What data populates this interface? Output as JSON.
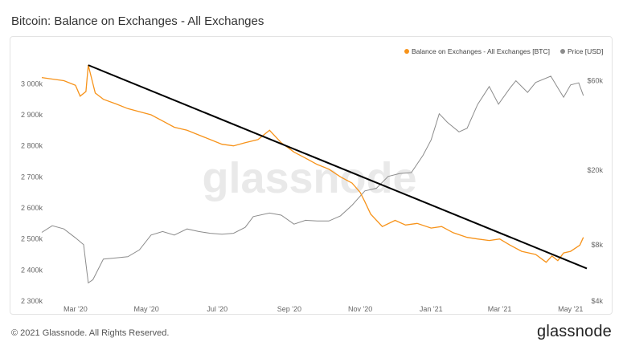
{
  "header": {
    "title": "Bitcoin: Balance on Exchanges - All Exchanges"
  },
  "footer": {
    "copyright": "© 2021 Glassnode. All Rights Reserved.",
    "logo": "glassnode"
  },
  "watermark": "glassnode",
  "colors": {
    "balance": "#f7931a",
    "price": "#8c8c8c",
    "trendline": "#000000"
  },
  "chart_data": {
    "type": "line",
    "title": "Bitcoin: Balance on Exchanges - All Exchanges",
    "x_ticks": [
      "Mar '20",
      "May '20",
      "Jul '20",
      "Sep '20",
      "Nov '20",
      "Jan '21",
      "Mar '21",
      "May '21"
    ],
    "y_left_ticks": [
      "2 300k",
      "2 400k",
      "2 500k",
      "2 600k",
      "2 700k",
      "2 800k",
      "2 900k",
      "3 000k"
    ],
    "y_left_range": [
      2300000,
      3050000
    ],
    "y_right_ticks": [
      "$4k",
      "$8k",
      "$20k",
      "$60k"
    ],
    "y_right_scale": "log",
    "y_right_range": [
      4000,
      70000
    ],
    "x_range": [
      "2020-02-01",
      "2021-05-15"
    ],
    "legend_position": "top-right",
    "series": [
      {
        "name": "Balance on Exchanges - All Exchanges [BTC]",
        "axis": "left",
        "points": [
          [
            "2020-02-01",
            3020000
          ],
          [
            "2020-02-10",
            3015000
          ],
          [
            "2020-02-20",
            3010000
          ],
          [
            "2020-03-01",
            2995000
          ],
          [
            "2020-03-05",
            2960000
          ],
          [
            "2020-03-10",
            2975000
          ],
          [
            "2020-03-12",
            3060000
          ],
          [
            "2020-03-18",
            2970000
          ],
          [
            "2020-03-25",
            2950000
          ],
          [
            "2020-04-05",
            2935000
          ],
          [
            "2020-04-15",
            2920000
          ],
          [
            "2020-04-25",
            2910000
          ],
          [
            "2020-05-05",
            2900000
          ],
          [
            "2020-05-15",
            2880000
          ],
          [
            "2020-05-25",
            2860000
          ],
          [
            "2020-06-05",
            2850000
          ],
          [
            "2020-06-15",
            2835000
          ],
          [
            "2020-06-25",
            2820000
          ],
          [
            "2020-07-05",
            2805000
          ],
          [
            "2020-07-15",
            2800000
          ],
          [
            "2020-07-25",
            2810000
          ],
          [
            "2020-08-05",
            2820000
          ],
          [
            "2020-08-15",
            2850000
          ],
          [
            "2020-08-25",
            2810000
          ],
          [
            "2020-09-05",
            2780000
          ],
          [
            "2020-09-15",
            2760000
          ],
          [
            "2020-09-25",
            2740000
          ],
          [
            "2020-10-05",
            2725000
          ],
          [
            "2020-10-15",
            2700000
          ],
          [
            "2020-10-25",
            2680000
          ],
          [
            "2020-11-01",
            2650000
          ],
          [
            "2020-11-05",
            2620000
          ],
          [
            "2020-11-10",
            2580000
          ],
          [
            "2020-11-20",
            2540000
          ],
          [
            "2020-12-01",
            2560000
          ],
          [
            "2020-12-10",
            2545000
          ],
          [
            "2020-12-20",
            2550000
          ],
          [
            "2021-01-01",
            2535000
          ],
          [
            "2021-01-10",
            2540000
          ],
          [
            "2021-01-20",
            2520000
          ],
          [
            "2021-02-01",
            2505000
          ],
          [
            "2021-02-10",
            2500000
          ],
          [
            "2021-02-20",
            2495000
          ],
          [
            "2021-03-01",
            2500000
          ],
          [
            "2021-03-10",
            2480000
          ],
          [
            "2021-03-20",
            2460000
          ],
          [
            "2021-04-01",
            2450000
          ],
          [
            "2021-04-10",
            2425000
          ],
          [
            "2021-04-15",
            2445000
          ],
          [
            "2021-04-20",
            2430000
          ],
          [
            "2021-04-25",
            2455000
          ],
          [
            "2021-05-01",
            2460000
          ],
          [
            "2021-05-05",
            2470000
          ],
          [
            "2021-05-09",
            2480000
          ],
          [
            "2021-05-12",
            2505000
          ]
        ]
      },
      {
        "name": "Price [USD]",
        "axis": "right",
        "points": [
          [
            "2020-02-01",
            9300
          ],
          [
            "2020-02-10",
            10100
          ],
          [
            "2020-02-20",
            9700
          ],
          [
            "2020-03-01",
            8700
          ],
          [
            "2020-03-08",
            8000
          ],
          [
            "2020-03-12",
            5000
          ],
          [
            "2020-03-16",
            5200
          ],
          [
            "2020-03-25",
            6700
          ],
          [
            "2020-04-05",
            6800
          ],
          [
            "2020-04-15",
            6900
          ],
          [
            "2020-04-25",
            7500
          ],
          [
            "2020-05-05",
            9000
          ],
          [
            "2020-05-15",
            9400
          ],
          [
            "2020-05-25",
            9000
          ],
          [
            "2020-06-05",
            9700
          ],
          [
            "2020-06-15",
            9400
          ],
          [
            "2020-06-25",
            9200
          ],
          [
            "2020-07-05",
            9100
          ],
          [
            "2020-07-15",
            9200
          ],
          [
            "2020-07-25",
            9900
          ],
          [
            "2020-08-01",
            11300
          ],
          [
            "2020-08-15",
            11800
          ],
          [
            "2020-08-25",
            11500
          ],
          [
            "2020-09-05",
            10300
          ],
          [
            "2020-09-15",
            10800
          ],
          [
            "2020-09-25",
            10700
          ],
          [
            "2020-10-05",
            10700
          ],
          [
            "2020-10-15",
            11400
          ],
          [
            "2020-10-25",
            13000
          ],
          [
            "2020-11-05",
            15500
          ],
          [
            "2020-11-15",
            16000
          ],
          [
            "2020-11-25",
            18500
          ],
          [
            "2020-12-05",
            19200
          ],
          [
            "2020-12-15",
            19400
          ],
          [
            "2020-12-25",
            24000
          ],
          [
            "2021-01-01",
            29000
          ],
          [
            "2021-01-08",
            40000
          ],
          [
            "2021-01-15",
            36000
          ],
          [
            "2021-01-25",
            32000
          ],
          [
            "2021-02-01",
            33500
          ],
          [
            "2021-02-10",
            44800
          ],
          [
            "2021-02-20",
            55900
          ],
          [
            "2021-02-28",
            45000
          ],
          [
            "2021-03-10",
            55000
          ],
          [
            "2021-03-15",
            60000
          ],
          [
            "2021-03-25",
            52000
          ],
          [
            "2021-04-01",
            58800
          ],
          [
            "2021-04-14",
            63500
          ],
          [
            "2021-04-20",
            55000
          ],
          [
            "2021-04-25",
            49000
          ],
          [
            "2021-05-01",
            57000
          ],
          [
            "2021-05-08",
            58500
          ],
          [
            "2021-05-12",
            50000
          ]
        ]
      }
    ],
    "annotations": [
      {
        "type": "trendline",
        "from": [
          "2020-03-12",
          3060000
        ],
        "to": [
          "2021-05-15",
          2405000
        ]
      }
    ]
  }
}
